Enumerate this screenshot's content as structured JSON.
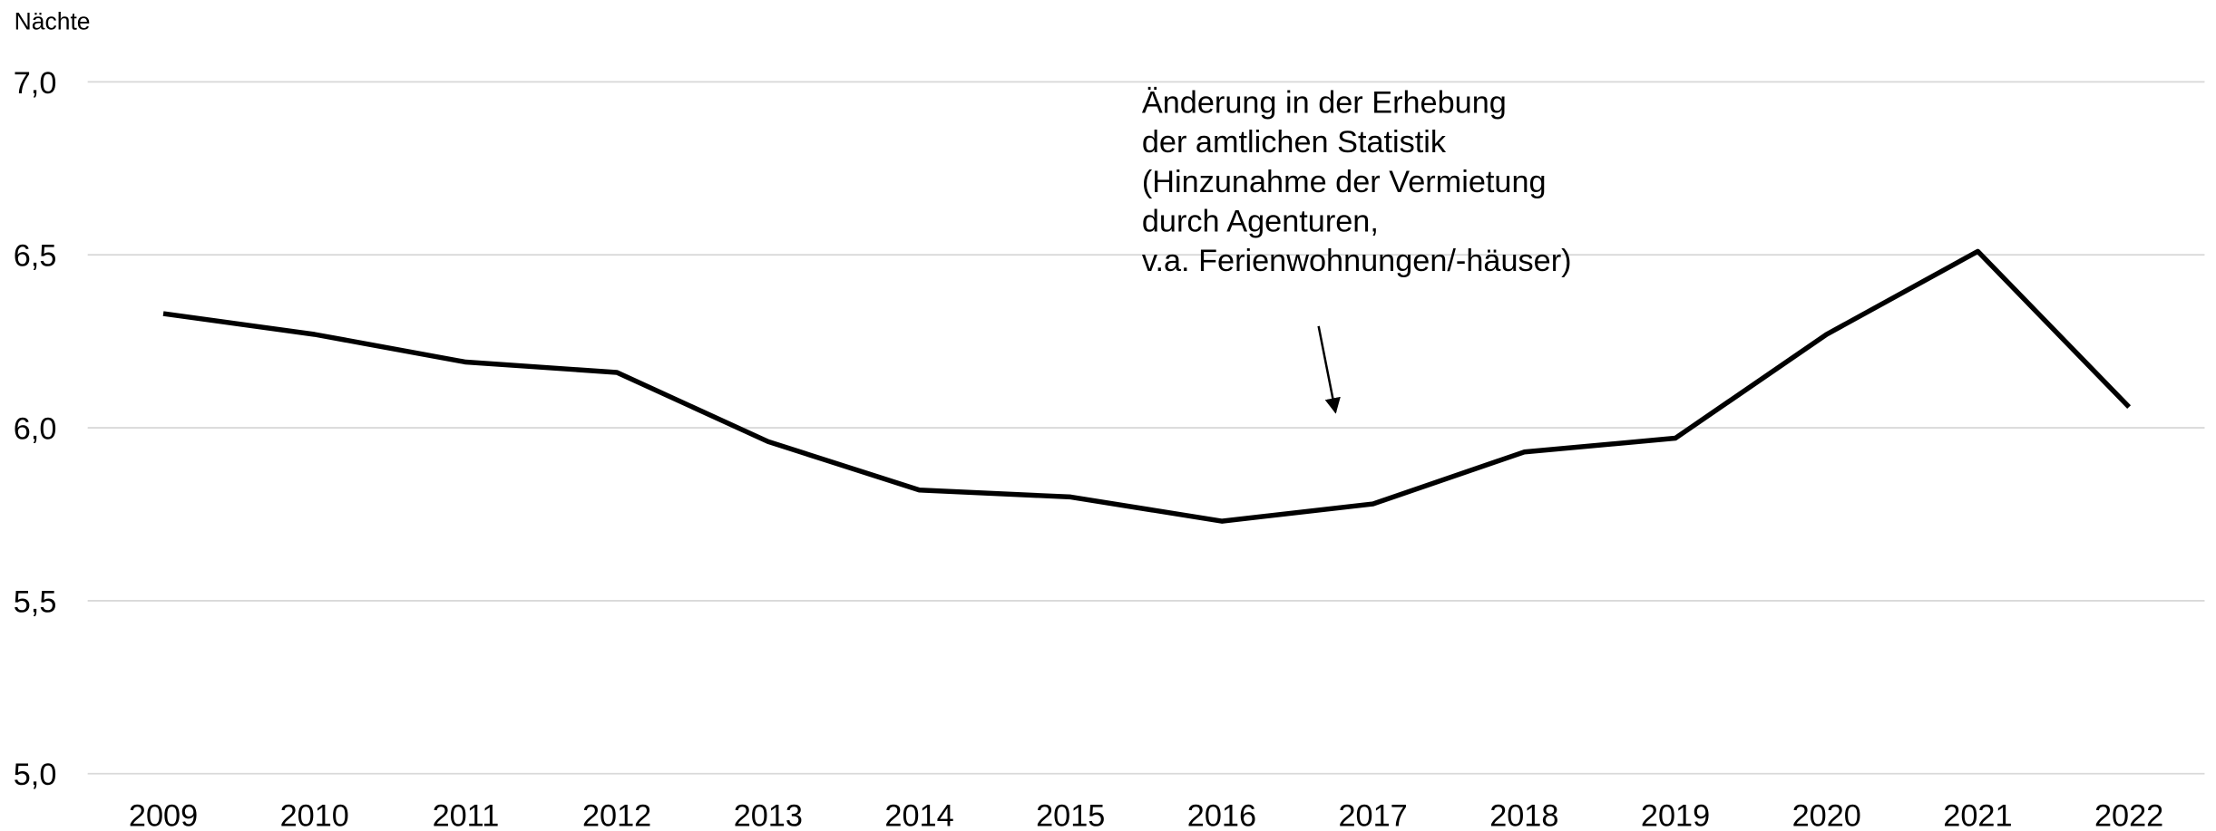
{
  "chart_data": {
    "type": "line",
    "y_axis_label": "Nächte",
    "annotation": [
      "Änderung in der Erhebung",
      "der amtlichen Statistik",
      "(Hinzunahme der Vermietung",
      "durch Agenturen,",
      "v.a. Ferienwohnungen/-häuser)"
    ],
    "categories": [
      "2009",
      "2010",
      "2011",
      "2012",
      "2013",
      "2014",
      "2015",
      "2016",
      "2017",
      "2018",
      "2019",
      "2020",
      "2021",
      "2022"
    ],
    "series": [
      {
        "color": "#000000",
        "values": [
          6.33,
          6.27,
          6.19,
          6.16,
          5.96,
          5.82,
          5.8,
          5.73,
          5.78,
          5.93,
          5.97,
          6.27,
          6.51,
          6.06
        ]
      }
    ],
    "ylim": [
      5,
      7
    ],
    "yticks": [
      {
        "value": 5,
        "label": "5,0"
      },
      {
        "value": 5.5,
        "label": "5,5"
      },
      {
        "value": 6,
        "label": "6,0"
      },
      {
        "value": 6.5,
        "label": "6,5"
      },
      {
        "value": 7,
        "label": "7,0"
      }
    ],
    "grid": true
  }
}
